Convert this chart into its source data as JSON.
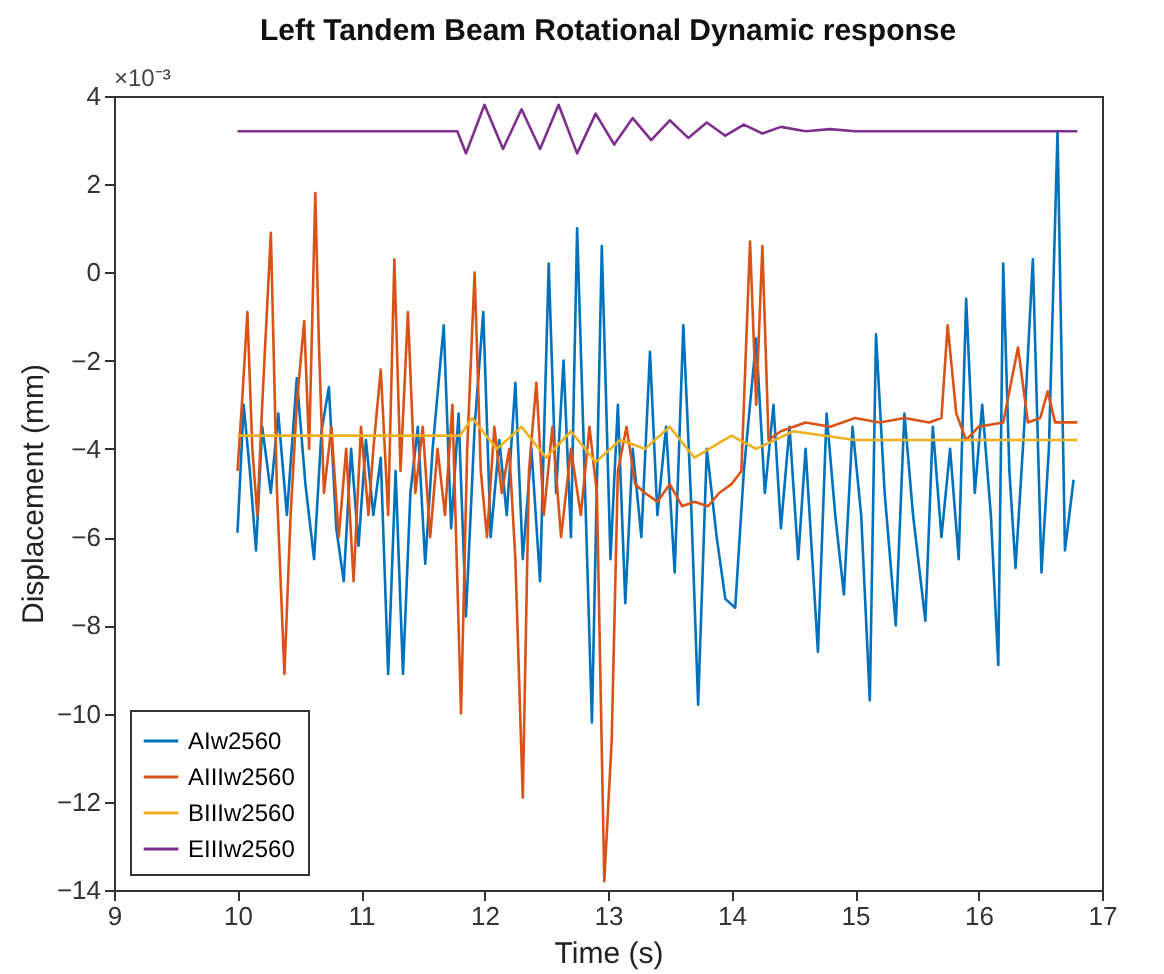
{
  "chart_data": {
    "type": "line",
    "title": "Left Tandem Beam Rotational Dynamic response",
    "xlabel": "Time (s)",
    "ylabel": "Displacement (mm)",
    "annotations": [
      "×10⁻³"
    ],
    "xlim": [
      9,
      17
    ],
    "xticks": [
      9,
      10,
      11,
      12,
      13,
      14,
      15,
      16,
      17
    ],
    "ylim": [
      -14,
      4
    ],
    "yticks": [
      -14,
      -12,
      -10,
      -8,
      -6,
      -4,
      -2,
      0,
      2,
      4
    ],
    "grid": false,
    "legend": "bottom left",
    "line_style": "solid",
    "marker": "none",
    "series": [
      {
        "name": "AIw2560",
        "color": "#0072bd",
        "x": [
          10.0,
          10.05,
          10.1,
          10.15,
          10.2,
          10.27,
          10.33,
          10.4,
          10.48,
          10.55,
          10.62,
          10.68,
          10.74,
          10.8,
          10.86,
          10.92,
          10.98,
          11.04,
          11.1,
          11.16,
          11.22,
          11.28,
          11.34,
          11.4,
          11.46,
          11.52,
          11.58,
          11.67,
          11.73,
          11.79,
          11.85,
          11.92,
          11.99,
          12.05,
          12.12,
          12.18,
          12.25,
          12.31,
          12.38,
          12.45,
          12.52,
          12.58,
          12.64,
          12.7,
          12.75,
          12.81,
          12.87,
          12.95,
          13.02,
          13.08,
          13.14,
          13.2,
          13.27,
          13.34,
          13.4,
          13.47,
          13.54,
          13.61,
          13.67,
          13.73,
          13.8,
          13.88,
          13.95,
          14.03,
          14.1,
          14.2,
          14.27,
          14.34,
          14.4,
          14.47,
          14.54,
          14.6,
          14.7,
          14.77,
          14.84,
          14.91,
          14.98,
          15.05,
          15.12,
          15.17,
          15.24,
          15.33,
          15.4,
          15.47,
          15.57,
          15.63,
          15.7,
          15.77,
          15.84,
          15.9,
          15.97,
          16.03,
          16.1,
          16.16,
          16.2,
          16.25,
          16.3,
          16.37,
          16.44,
          16.51,
          16.57,
          16.64,
          16.7,
          16.77
        ],
        "values": [
          -5.9,
          -3.0,
          -4.5,
          -6.3,
          -3.5,
          -5.0,
          -3.2,
          -5.5,
          -2.4,
          -4.8,
          -6.5,
          -3.6,
          -2.6,
          -5.8,
          -7.0,
          -4.0,
          -6.2,
          -3.8,
          -5.5,
          -4.2,
          -9.1,
          -4.5,
          -9.1,
          -5.0,
          -3.5,
          -6.6,
          -4.0,
          -1.2,
          -5.8,
          -3.2,
          -7.8,
          -3.5,
          -0.9,
          -6.0,
          -3.8,
          -5.5,
          -2.5,
          -6.5,
          -4.0,
          -7.0,
          0.2,
          -5.0,
          -2.0,
          -6.0,
          1.0,
          -4.5,
          -10.2,
          0.6,
          -6.5,
          -3.0,
          -7.5,
          -4.0,
          -6.0,
          -1.8,
          -5.5,
          -3.5,
          -6.8,
          -1.2,
          -5.0,
          -9.8,
          -4.0,
          -6.0,
          -7.4,
          -7.6,
          -4.5,
          -1.5,
          -5.0,
          -3.0,
          -5.8,
          -3.5,
          -6.5,
          -4.0,
          -8.6,
          -3.2,
          -5.5,
          -7.3,
          -3.5,
          -5.5,
          -9.7,
          -1.4,
          -5.0,
          -8.0,
          -3.2,
          -5.5,
          -7.9,
          -3.5,
          -6.0,
          -4.0,
          -6.5,
          -0.6,
          -5.0,
          -3.0,
          -5.5,
          -8.9,
          0.2,
          -4.5,
          -6.7,
          -3.5,
          0.3,
          -6.8,
          -4.0,
          3.2,
          -6.3,
          -4.7
        ]
      },
      {
        "name": "AIIIw2560",
        "color": "#d95319",
        "x": [
          10.0,
          10.04,
          10.08,
          10.12,
          10.16,
          10.2,
          10.27,
          10.32,
          10.38,
          10.43,
          10.48,
          10.54,
          10.58,
          10.63,
          10.66,
          10.7,
          10.76,
          10.82,
          10.88,
          10.94,
          11.0,
          11.06,
          11.1,
          11.16,
          11.22,
          11.27,
          11.32,
          11.38,
          11.44,
          11.5,
          11.56,
          11.62,
          11.68,
          11.74,
          11.81,
          11.86,
          11.92,
          11.97,
          12.02,
          12.08,
          12.14,
          12.2,
          12.25,
          12.31,
          12.36,
          12.42,
          12.48,
          12.55,
          12.62,
          12.7,
          12.78,
          12.85,
          12.91,
          12.97,
          13.03,
          13.08,
          13.15,
          13.22,
          13.3,
          13.4,
          13.5,
          13.6,
          13.7,
          13.81,
          13.9,
          14.0,
          14.08,
          14.15,
          14.2,
          14.25,
          14.3,
          14.4,
          14.6,
          14.8,
          15.0,
          15.2,
          15.4,
          15.6,
          15.7,
          15.75,
          15.82,
          15.9,
          16.0,
          16.2,
          16.32,
          16.4,
          16.5,
          16.56,
          16.62,
          16.8
        ],
        "values": [
          -4.5,
          -2.8,
          -0.9,
          -4.0,
          -5.5,
          -3.0,
          0.9,
          -5.0,
          -9.1,
          -5.5,
          -3.0,
          -1.1,
          -4.0,
          1.8,
          -1.7,
          -5.0,
          -3.5,
          -6.0,
          -4.0,
          -7.0,
          -3.5,
          -5.5,
          -4.0,
          -2.2,
          -5.5,
          0.3,
          -4.5,
          -0.9,
          -5.0,
          -3.5,
          -6.0,
          -4.0,
          -5.5,
          -3.0,
          -10.0,
          -4.0,
          0.0,
          -4.5,
          -6.0,
          -3.5,
          -5.0,
          -4.0,
          -6.5,
          -11.9,
          -4.5,
          -2.5,
          -5.5,
          -3.5,
          -6.0,
          -4.0,
          -5.5,
          -3.5,
          -5.0,
          -13.8,
          -10.6,
          -4.5,
          -3.5,
          -4.8,
          -5.0,
          -5.2,
          -4.8,
          -5.3,
          -5.2,
          -5.3,
          -5.0,
          -4.8,
          -4.5,
          0.7,
          -3.0,
          0.6,
          -3.8,
          -3.6,
          -3.4,
          -3.5,
          -3.3,
          -3.4,
          -3.3,
          -3.4,
          -3.3,
          -1.2,
          -3.2,
          -3.8,
          -3.5,
          -3.4,
          -1.7,
          -3.4,
          -3.3,
          -2.7,
          -3.4,
          -3.4
        ]
      },
      {
        "name": "BIIIw2560",
        "color": "#edb120",
        "x": [
          10.0,
          11.8,
          11.9,
          12.1,
          12.3,
          12.5,
          12.7,
          12.9,
          13.1,
          13.3,
          13.5,
          13.7,
          14.0,
          14.2,
          14.5,
          15.0,
          16.8
        ],
        "values": [
          -3.7,
          -3.7,
          -3.3,
          -4.0,
          -3.5,
          -4.2,
          -3.6,
          -4.3,
          -3.8,
          -4.0,
          -3.5,
          -4.2,
          -3.7,
          -4.0,
          -3.6,
          -3.8,
          -3.8
        ]
      },
      {
        "name": "EIIIw2560",
        "color": "#7e2f8e",
        "x": [
          10.0,
          11.78,
          11.85,
          12.0,
          12.15,
          12.3,
          12.45,
          12.6,
          12.75,
          12.9,
          13.05,
          13.2,
          13.35,
          13.5,
          13.65,
          13.8,
          13.95,
          14.1,
          14.25,
          14.4,
          14.6,
          14.8,
          15.0,
          16.8
        ],
        "values": [
          3.2,
          3.2,
          2.7,
          3.8,
          2.8,
          3.7,
          2.8,
          3.8,
          2.7,
          3.6,
          2.9,
          3.5,
          3.0,
          3.45,
          3.05,
          3.4,
          3.1,
          3.35,
          3.15,
          3.3,
          3.2,
          3.25,
          3.2,
          3.2
        ]
      }
    ]
  }
}
